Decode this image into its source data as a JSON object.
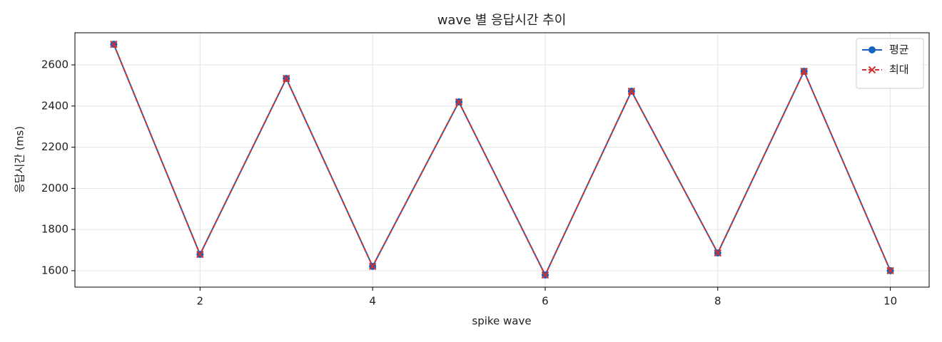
{
  "chart_data": {
    "type": "line",
    "title": "wave 별 응답시간 추이",
    "x_label": "spike wave",
    "y_label": "응답시간 (ms)",
    "x": [
      1,
      2,
      3,
      4,
      5,
      6,
      7,
      8,
      9,
      10
    ],
    "series": [
      {
        "name": "평균",
        "color": "#1565c0",
        "marker": "o",
        "linestyle": "solid",
        "values": [
          2700,
          1679,
          2534,
          1621,
          2420,
          1579,
          2472,
          1686,
          2569,
          1600
        ]
      },
      {
        "name": "최대",
        "color": "#d32f2f",
        "marker": "x",
        "linestyle": "dashed",
        "values": [
          2700,
          1679,
          2534,
          1621,
          2420,
          1579,
          2472,
          1686,
          2569,
          1600
        ]
      }
    ],
    "xlim": [
      0.55,
      10.45
    ],
    "ylim": [
      1520,
      2756
    ],
    "xticks": [
      2,
      4,
      6,
      8,
      10
    ],
    "yticks": [
      1600,
      1800,
      2000,
      2200,
      2400,
      2600
    ],
    "grid": true,
    "legend": "upper right"
  }
}
